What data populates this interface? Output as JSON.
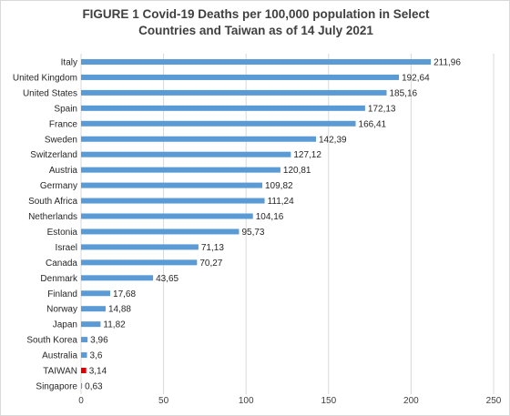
{
  "chart_data": {
    "type": "bar",
    "orientation": "horizontal",
    "title": [
      "FIGURE 1  Covid-19 Deaths per 100,000 population in Select",
      "Countries and Taiwan as of 14 July 2021"
    ],
    "categories": [
      "Italy",
      "United Kingdom",
      "United States",
      "Spain",
      "France",
      "Sweden",
      "Switzerland",
      "Austria",
      "Germany",
      "South Africa",
      "Netherlands",
      "Estonia",
      "Israel",
      "Canada",
      "Denmark",
      "Finland",
      "Norway",
      "Japan",
      "South Korea",
      "Australia",
      "TAIWAN",
      "Singapore"
    ],
    "values": [
      211.96,
      192.64,
      185.16,
      172.13,
      166.41,
      142.39,
      127.12,
      120.81,
      109.82,
      111.24,
      104.16,
      95.73,
      71.13,
      70.27,
      43.65,
      17.68,
      14.88,
      11.82,
      3.96,
      3.6,
      3.14,
      0.63
    ],
    "value_labels": [
      "211,96",
      "192,64",
      "185,16",
      "172,13",
      "166,41",
      "142,39",
      "127,12",
      "120,81",
      "109,82",
      "111,24",
      "104,16",
      "95,73",
      "71,13",
      "70,27",
      "43,65",
      "17,68",
      "14,88",
      "11,82",
      "3,96",
      "3,6",
      "3,14",
      "0,63"
    ],
    "xlim": [
      0,
      250
    ],
    "x_ticks": [
      0,
      50,
      100,
      150,
      200,
      250
    ],
    "grid": true,
    "bar_color": "#5b9bd5",
    "highlight": {
      "category": "TAIWAN",
      "color": "#e00000"
    },
    "xlabel": "",
    "ylabel": ""
  }
}
